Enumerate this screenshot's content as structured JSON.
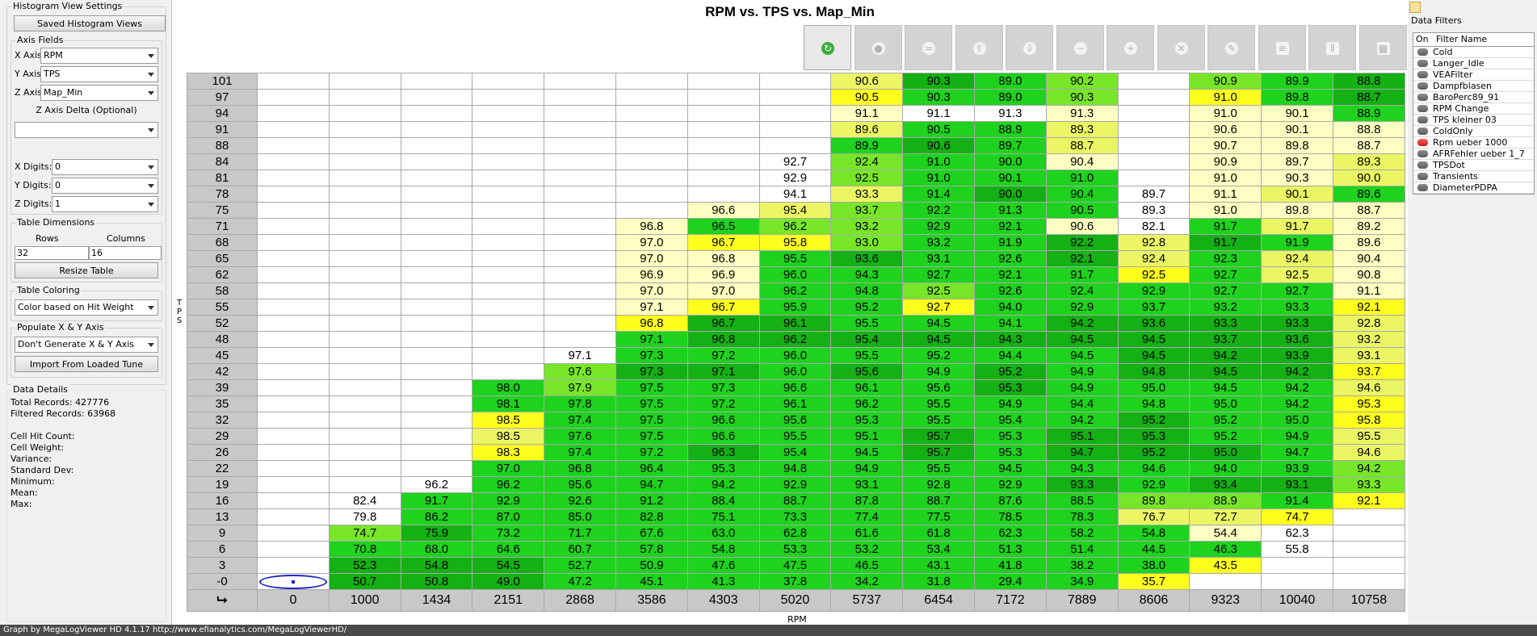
{
  "left": {
    "histogram_group_title": "Histogram View Settings",
    "saved_views_button": "Saved Histogram Views",
    "axis_group_title": "Axis Fields",
    "x_axis_label": "X Axis:",
    "x_axis_value": "RPM",
    "y_axis_label": "Y Axis:",
    "y_axis_value": "TPS",
    "z_axis_label": "Z Axis:",
    "z_axis_value": "Map_Min",
    "z_delta_label": "Z Axis Delta (Optional)",
    "z_delta_value": "",
    "x_digits_label": "X Digits:",
    "x_digits_value": "0",
    "y_digits_label": "Y Digits:",
    "y_digits_value": "0",
    "z_digits_label": "Z Digits:",
    "z_digits_value": "1",
    "dims_group_title": "Table Dimensions",
    "rows_label": "Rows",
    "columns_label": "Columns",
    "rows_value": "32",
    "columns_value": "16",
    "resize_button": "Resize Table",
    "coloring_group_title": "Table Coloring",
    "coloring_value": "Color based on Hit Weight",
    "populate_group_title": "Populate X & Y Axis",
    "populate_value": "Don't Generate X & Y Axis",
    "import_button": "Import From Loaded Tune",
    "details_group_title": "Data Details",
    "total_records": "Total Records: 427776",
    "filtered_records": "Filtered Records: 63968",
    "cell_hit_count": "Cell Hit Count:",
    "cell_weight": "Cell Weight:",
    "variance": "Variance:",
    "std_dev": "Standard Dev:",
    "minimum": "Minimum:",
    "mean": "Mean:",
    "max": "Max:"
  },
  "main": {
    "title": "RPM vs. TPS vs. Map_Min",
    "y_axis_label": "T\nP\nS",
    "x_axis_label": "RPM",
    "corner_glyph": "⮡",
    "toolbar_icons": [
      "refresh-icon",
      "record-icon",
      "equals-icon",
      "upload-icon",
      "download-icon",
      "minus-icon",
      "plus-icon",
      "clear-icon",
      "pencil-icon",
      "rows-icon",
      "columns-icon",
      "grid-icon"
    ],
    "toolbar_glyphs": [
      "↻",
      "●",
      "=",
      "⇧",
      "⇩",
      "−",
      "+",
      "✕",
      "✎",
      "≡",
      "⦀",
      "▦"
    ]
  },
  "chart_data": {
    "type": "heatmap",
    "title": "RPM vs. TPS vs. Map_Min",
    "xlabel": "RPM",
    "ylabel": "TPS",
    "x": [
      "0",
      "1000",
      "1434",
      "2151",
      "2868",
      "3586",
      "4303",
      "5020",
      "5737",
      "6454",
      "7172",
      "7889",
      "8606",
      "9323",
      "10040",
      "10758"
    ],
    "y": [
      "101",
      "97",
      "94",
      "91",
      "88",
      "84",
      "81",
      "78",
      "75",
      "71",
      "68",
      "65",
      "62",
      "58",
      "55",
      "52",
      "48",
      "45",
      "42",
      "39",
      "35",
      "32",
      "29",
      "26",
      "22",
      "19",
      "16",
      "13",
      "9",
      "6",
      "3",
      "-0"
    ],
    "values": [
      [
        "",
        "",
        "",
        "",
        "",
        "",
        "",
        "",
        "90.6",
        "90.3",
        "89.0",
        "90.2",
        "",
        "90.9",
        "89.9",
        "88.8"
      ],
      [
        "",
        "",
        "",
        "",
        "",
        "",
        "",
        "",
        "90.5",
        "90.3",
        "89.0",
        "90.3",
        "",
        "91.0",
        "89.8",
        "88.7"
      ],
      [
        "",
        "",
        "",
        "",
        "",
        "",
        "",
        "",
        "91.1",
        "91.1",
        "91.3",
        "91.3",
        "",
        "91.0",
        "90.1",
        "88.9"
      ],
      [
        "",
        "",
        "",
        "",
        "",
        "",
        "",
        "",
        "89.6",
        "90.5",
        "88.9",
        "89.3",
        "",
        "90.6",
        "90.1",
        "88.8"
      ],
      [
        "",
        "",
        "",
        "",
        "",
        "",
        "",
        "",
        "89.9",
        "90.6",
        "89.7",
        "88.7",
        "",
        "90.7",
        "89.8",
        "88.7"
      ],
      [
        "",
        "",
        "",
        "",
        "",
        "",
        "",
        "92.7",
        "92.4",
        "91.0",
        "90.0",
        "90.4",
        "",
        "90.9",
        "89.7",
        "89.3"
      ],
      [
        "",
        "",
        "",
        "",
        "",
        "",
        "",
        "92.9",
        "92.5",
        "91.0",
        "90.1",
        "91.0",
        "",
        "91.0",
        "90.3",
        "90.0"
      ],
      [
        "",
        "",
        "",
        "",
        "",
        "",
        "",
        "94.1",
        "93.3",
        "91.4",
        "90.0",
        "90.4",
        "89.7",
        "91.1",
        "90.1",
        "89.6"
      ],
      [
        "",
        "",
        "",
        "",
        "",
        "",
        "96.6",
        "95.4",
        "93.7",
        "92.2",
        "91.3",
        "90.5",
        "89.3",
        "91.0",
        "89.8",
        "88.7"
      ],
      [
        "",
        "",
        "",
        "",
        "",
        "96.8",
        "96.5",
        "96.2",
        "93.2",
        "92.9",
        "92.1",
        "90.6",
        "82.1",
        "91.7",
        "91.7",
        "89.2"
      ],
      [
        "",
        "",
        "",
        "",
        "",
        "97.0",
        "96.7",
        "95.8",
        "93.0",
        "93.2",
        "91.9",
        "92.2",
        "92.8",
        "91.7",
        "91.9",
        "89.6"
      ],
      [
        "",
        "",
        "",
        "",
        "",
        "97.0",
        "96.8",
        "95.5",
        "93.6",
        "93.1",
        "92.6",
        "92.1",
        "92.4",
        "92.3",
        "92.4",
        "90.4"
      ],
      [
        "",
        "",
        "",
        "",
        "",
        "96.9",
        "96.9",
        "96.0",
        "94.3",
        "92.7",
        "92.1",
        "91.7",
        "92.5",
        "92.7",
        "92.5",
        "90.8"
      ],
      [
        "",
        "",
        "",
        "",
        "",
        "97.0",
        "97.0",
        "96.2",
        "94.8",
        "92.5",
        "92.6",
        "92.4",
        "92.9",
        "92.7",
        "92.7",
        "91.1"
      ],
      [
        "",
        "",
        "",
        "",
        "",
        "97.1",
        "96.7",
        "95.9",
        "95.2",
        "92.7",
        "94.0",
        "92.9",
        "93.7",
        "93.2",
        "93.3",
        "92.1"
      ],
      [
        "",
        "",
        "",
        "",
        "",
        "96.8",
        "96.7",
        "96.1",
        "95.5",
        "94.5",
        "94.1",
        "94.2",
        "93.6",
        "93.3",
        "93.3",
        "92.8"
      ],
      [
        "",
        "",
        "",
        "",
        "",
        "97.1",
        "96.8",
        "96.2",
        "95.4",
        "94.5",
        "94.3",
        "94.5",
        "94.5",
        "93.7",
        "93.6",
        "93.2"
      ],
      [
        "",
        "",
        "",
        "",
        "97.1",
        "97.3",
        "97.2",
        "96.0",
        "95.5",
        "95.2",
        "94.4",
        "94.5",
        "94.5",
        "94.2",
        "93.9",
        "93.1"
      ],
      [
        "",
        "",
        "",
        "",
        "97.6",
        "97.3",
        "97.1",
        "96.0",
        "95.6",
        "94.9",
        "95.2",
        "94.9",
        "94.8",
        "94.5",
        "94.2",
        "93.7"
      ],
      [
        "",
        "",
        "",
        "98.0",
        "97.9",
        "97.5",
        "97.3",
        "96.6",
        "96.1",
        "95.6",
        "95.3",
        "94.9",
        "95.0",
        "94.5",
        "94.2",
        "94.6"
      ],
      [
        "",
        "",
        "",
        "98.1",
        "97.8",
        "97.5",
        "97.2",
        "96.1",
        "96.2",
        "95.5",
        "94.9",
        "94.4",
        "94.8",
        "95.0",
        "94.2",
        "95.3"
      ],
      [
        "",
        "",
        "",
        "98.5",
        "97.4",
        "97.5",
        "96.6",
        "95.6",
        "95.3",
        "95.5",
        "95.4",
        "94.2",
        "95.2",
        "95.2",
        "95.0",
        "95.8"
      ],
      [
        "",
        "",
        "",
        "98.5",
        "97.6",
        "97.5",
        "96.6",
        "95.5",
        "95.1",
        "95.7",
        "95.3",
        "95.1",
        "95.3",
        "95.2",
        "94.9",
        "95.5"
      ],
      [
        "",
        "",
        "",
        "98.3",
        "97.4",
        "97.2",
        "96.3",
        "95.4",
        "94.5",
        "95.7",
        "95.3",
        "94.7",
        "95.2",
        "95.0",
        "94.7",
        "94.6"
      ],
      [
        "",
        "",
        "",
        "97.0",
        "96.8",
        "96.4",
        "95.3",
        "94.8",
        "94.9",
        "95.5",
        "94.5",
        "94.3",
        "94.6",
        "94.0",
        "93.9",
        "94.2"
      ],
      [
        "",
        "",
        "96.2",
        "96.2",
        "95.6",
        "94.7",
        "94.2",
        "92.9",
        "93.1",
        "92.8",
        "92.9",
        "93.3",
        "92.9",
        "93.4",
        "93.1",
        "93.3"
      ],
      [
        "",
        "82.4",
        "91.7",
        "92.9",
        "92.6",
        "91.2",
        "88.4",
        "88.7",
        "87.8",
        "88.7",
        "87.6",
        "88.5",
        "89.8",
        "88.9",
        "91.4",
        "92.1"
      ],
      [
        "",
        "79.8",
        "86.2",
        "87.0",
        "85.0",
        "82.8",
        "75.1",
        "73.3",
        "77.4",
        "77.5",
        "78.5",
        "78.3",
        "76.7",
        "72.7",
        "74.7",
        ""
      ],
      [
        "",
        "74.7",
        "75.9",
        "73.2",
        "71.7",
        "67.6",
        "63.0",
        "62.8",
        "61.6",
        "61.8",
        "62.3",
        "58.2",
        "54.8",
        "54.4",
        "62.3",
        ""
      ],
      [
        "",
        "70.8",
        "68.0",
        "64.6",
        "60.7",
        "57.8",
        "54.8",
        "53.3",
        "53.2",
        "53.4",
        "51.3",
        "51.4",
        "44.5",
        "46.3",
        "55.8",
        ""
      ],
      [
        "",
        "52.3",
        "54.8",
        "54.5",
        "52.7",
        "50.9",
        "47.6",
        "47.5",
        "46.5",
        "43.1",
        "41.8",
        "38.2",
        "38.0",
        "43.5",
        "",
        ""
      ],
      [
        "",
        "50.7",
        "50.8",
        "49.0",
        "47.2",
        "45.1",
        "41.3",
        "37.8",
        "34.2",
        "31.8",
        "29.4",
        "34.9",
        "35.7",
        "",
        "",
        ""
      ]
    ],
    "colors": [
      [
        "",
        "",
        "",
        "",
        "",
        "",
        "",
        "",
        "y",
        "D",
        "G",
        "L",
        "",
        "L",
        "G",
        "D"
      ],
      [
        "",
        "",
        "",
        "",
        "",
        "",
        "",
        "",
        "Y",
        "G",
        "G",
        "L",
        "",
        "Y",
        "G",
        "D"
      ],
      [
        "",
        "",
        "",
        "",
        "",
        "",
        "",
        "",
        "P",
        "W",
        "W",
        "P",
        "",
        "P",
        "P",
        "G"
      ],
      [
        "",
        "",
        "",
        "",
        "",
        "",
        "",
        "",
        "y",
        "G",
        "G",
        "y",
        "",
        "P",
        "P",
        "P"
      ],
      [
        "",
        "",
        "",
        "",
        "",
        "",
        "",
        "",
        "G",
        "D",
        "G",
        "y",
        "",
        "P",
        "P",
        "P"
      ],
      [
        "",
        "",
        "",
        "",
        "",
        "",
        "",
        "W",
        "L",
        "G",
        "G",
        "P",
        "",
        "P",
        "P",
        "y"
      ],
      [
        "",
        "",
        "",
        "",
        "",
        "",
        "",
        "W",
        "L",
        "G",
        "G",
        "G",
        "",
        "P",
        "P",
        "y"
      ],
      [
        "",
        "",
        "",
        "",
        "",
        "",
        "",
        "W",
        "y",
        "G",
        "D",
        "G",
        "W",
        "P",
        "y",
        "G"
      ],
      [
        "",
        "",
        "",
        "",
        "",
        "",
        "P",
        "y",
        "L",
        "G",
        "G",
        "G",
        "W",
        "P",
        "P",
        "P"
      ],
      [
        "",
        "",
        "",
        "",
        "",
        "P",
        "G",
        "L",
        "L",
        "G",
        "G",
        "P",
        "W",
        "G",
        "y",
        "P"
      ],
      [
        "",
        "",
        "",
        "",
        "",
        "P",
        "Y",
        "Y",
        "L",
        "G",
        "G",
        "D",
        "y",
        "D",
        "G",
        "P"
      ],
      [
        "",
        "",
        "",
        "",
        "",
        "P",
        "P",
        "G",
        "D",
        "G",
        "G",
        "D",
        "y",
        "G",
        "y",
        "P"
      ],
      [
        "",
        "",
        "",
        "",
        "",
        "P",
        "P",
        "G",
        "G",
        "G",
        "G",
        "G",
        "Y",
        "G",
        "y",
        "P"
      ],
      [
        "",
        "",
        "",
        "",
        "",
        "P",
        "P",
        "G",
        "G",
        "L",
        "G",
        "G",
        "G",
        "G",
        "G",
        "P"
      ],
      [
        "",
        "",
        "",
        "",
        "",
        "P",
        "Y",
        "G",
        "G",
        "Y",
        "G",
        "G",
        "G",
        "G",
        "G",
        "Y"
      ],
      [
        "",
        "",
        "",
        "",
        "",
        "Y",
        "D",
        "D",
        "G",
        "G",
        "G",
        "D",
        "D",
        "D",
        "D",
        "y"
      ],
      [
        "",
        "",
        "",
        "",
        "",
        "G",
        "D",
        "D",
        "D",
        "D",
        "D",
        "D",
        "D",
        "D",
        "D",
        "y"
      ],
      [
        "",
        "",
        "",
        "",
        "W",
        "G",
        "G",
        "G",
        "G",
        "G",
        "G",
        "G",
        "D",
        "D",
        "D",
        "y"
      ],
      [
        "",
        "",
        "",
        "",
        "L",
        "D",
        "D",
        "G",
        "D",
        "G",
        "D",
        "G",
        "D",
        "D",
        "D",
        "Y"
      ],
      [
        "",
        "",
        "",
        "G",
        "L",
        "G",
        "G",
        "G",
        "G",
        "G",
        "D",
        "G",
        "G",
        "G",
        "G",
        "y"
      ],
      [
        "",
        "",
        "",
        "G",
        "G",
        "G",
        "G",
        "G",
        "G",
        "G",
        "G",
        "G",
        "G",
        "G",
        "G",
        "Y"
      ],
      [
        "",
        "",
        "",
        "Y",
        "G",
        "G",
        "G",
        "G",
        "G",
        "G",
        "G",
        "G",
        "D",
        "G",
        "G",
        "Y"
      ],
      [
        "",
        "",
        "",
        "y",
        "G",
        "G",
        "G",
        "G",
        "G",
        "D",
        "G",
        "D",
        "D",
        "G",
        "G",
        "y"
      ],
      [
        "",
        "",
        "",
        "Y",
        "G",
        "G",
        "D",
        "G",
        "G",
        "D",
        "G",
        "D",
        "D",
        "D",
        "G",
        "y"
      ],
      [
        "",
        "",
        "",
        "G",
        "G",
        "G",
        "G",
        "G",
        "G",
        "G",
        "G",
        "G",
        "G",
        "G",
        "G",
        "L"
      ],
      [
        "",
        "",
        "W",
        "G",
        "G",
        "G",
        "G",
        "G",
        "G",
        "G",
        "G",
        "D",
        "G",
        "D",
        "D",
        "L"
      ],
      [
        "",
        "W",
        "G",
        "G",
        "G",
        "G",
        "G",
        "G",
        "G",
        "G",
        "G",
        "G",
        "L",
        "L",
        "G",
        "Y"
      ],
      [
        "",
        "W",
        "G",
        "G",
        "G",
        "G",
        "G",
        "G",
        "G",
        "G",
        "G",
        "G",
        "y",
        "y",
        "Y",
        ""
      ],
      [
        "",
        "L",
        "D",
        "G",
        "G",
        "G",
        "G",
        "G",
        "G",
        "G",
        "G",
        "G",
        "G",
        "P",
        "W",
        ""
      ],
      [
        "",
        "G",
        "G",
        "G",
        "G",
        "G",
        "G",
        "G",
        "G",
        "G",
        "G",
        "G",
        "G",
        "G",
        "W",
        ""
      ],
      [
        "",
        "D",
        "D",
        "D",
        "G",
        "G",
        "G",
        "G",
        "G",
        "G",
        "G",
        "G",
        "G",
        "Y",
        "",
        ""
      ],
      [
        "",
        "D",
        "D",
        "D",
        "G",
        "G",
        "G",
        "G",
        "G",
        "G",
        "G",
        "G",
        "Y",
        "",
        "",
        ""
      ]
    ],
    "palette": {
      "D": "#14b014",
      "G": "#1ed21e",
      "L": "#78e628",
      "y": "#ecf564",
      "Y": "#ffff1e",
      "P": "#fefec2",
      "W": "#ffffff"
    }
  },
  "right": {
    "title": "Data Filters",
    "col_on": "On",
    "col_name": "Filter Name",
    "filters": [
      {
        "name": "Cold",
        "on": false
      },
      {
        "name": "Langer_Idle",
        "on": false
      },
      {
        "name": "VEAFilter",
        "on": false
      },
      {
        "name": "Dampfblasen",
        "on": false
      },
      {
        "name": "BaroPerc89_91",
        "on": false
      },
      {
        "name": "RPM Change",
        "on": false
      },
      {
        "name": "TPS kleiner 03",
        "on": false
      },
      {
        "name": "ColdOnly",
        "on": false
      },
      {
        "name": "Rpm ueber 1000",
        "on": true
      },
      {
        "name": "AFRFehler ueber 1_7",
        "on": false
      },
      {
        "name": "TPSDot",
        "on": false
      },
      {
        "name": "Transients",
        "on": false
      },
      {
        "name": "DiameterPDPA",
        "on": false
      }
    ]
  },
  "status": {
    "text": "Graph by MegaLogViewer HD 4.1.17 http://www.efianalytics.com/MegaLogViewerHD/"
  }
}
